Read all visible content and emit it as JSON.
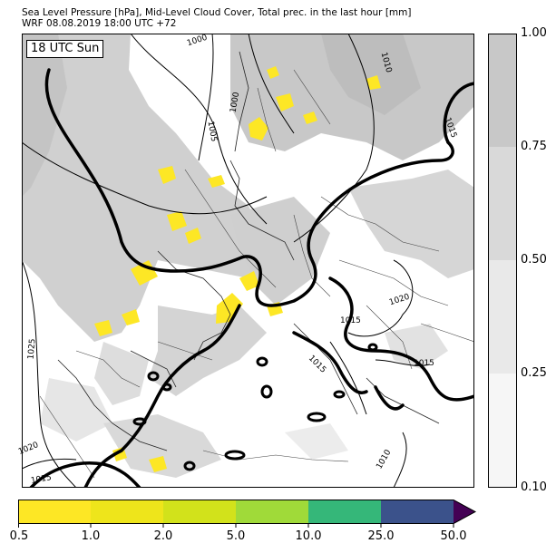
{
  "title_line1": "Sea Level Pressure [hPa], Mid-Level Cloud Cover, Total prec. in the last hour [mm]",
  "title_line2": "WRF 08.08.2019 18:00 UTC +72",
  "time_label": "18 UTC Sun",
  "isobar_labels": [
    {
      "text": "1000",
      "id": "isobar-label-1000-north"
    },
    {
      "text": "1000",
      "id": "isobar-label-1000-norway"
    },
    {
      "text": "1005",
      "id": "isobar-label-1005"
    },
    {
      "text": "1010",
      "id": "isobar-label-1010-north"
    },
    {
      "text": "1015",
      "id": "isobar-label-1015-east"
    },
    {
      "text": "1020",
      "id": "isobar-label-1020-balkans"
    },
    {
      "text": "1015",
      "id": "isobar-label-1015-italy"
    },
    {
      "text": "1015",
      "id": "isobar-label-1015-adriatic"
    },
    {
      "text": "1015",
      "id": "isobar-label-1015-greece"
    },
    {
      "text": "1025",
      "id": "isobar-label-1025"
    },
    {
      "text": "1020",
      "id": "isobar-label-1020-west"
    },
    {
      "text": "1015",
      "id": "isobar-label-1015-southwest"
    },
    {
      "text": "1010",
      "id": "isobar-label-1010-south"
    }
  ],
  "cloud_colorbar": {
    "ticks": [
      "1.00",
      "0.75",
      "0.50",
      "0.25",
      "0.10"
    ],
    "colors": [
      "#c8c8c8",
      "#d9d9d9",
      "#e9e9e9",
      "#f6f6f6"
    ]
  },
  "precip_colorbar": {
    "ticks": [
      "0.5",
      "1.0",
      "2.0",
      "5.0",
      "10.0",
      "25.0",
      "50.0"
    ],
    "colors": [
      "#fde725",
      "#eee51b",
      "#d2e21b",
      "#a0da39",
      "#35b779",
      "#2ebb7c",
      "#3b528b",
      "#440154"
    ]
  }
}
